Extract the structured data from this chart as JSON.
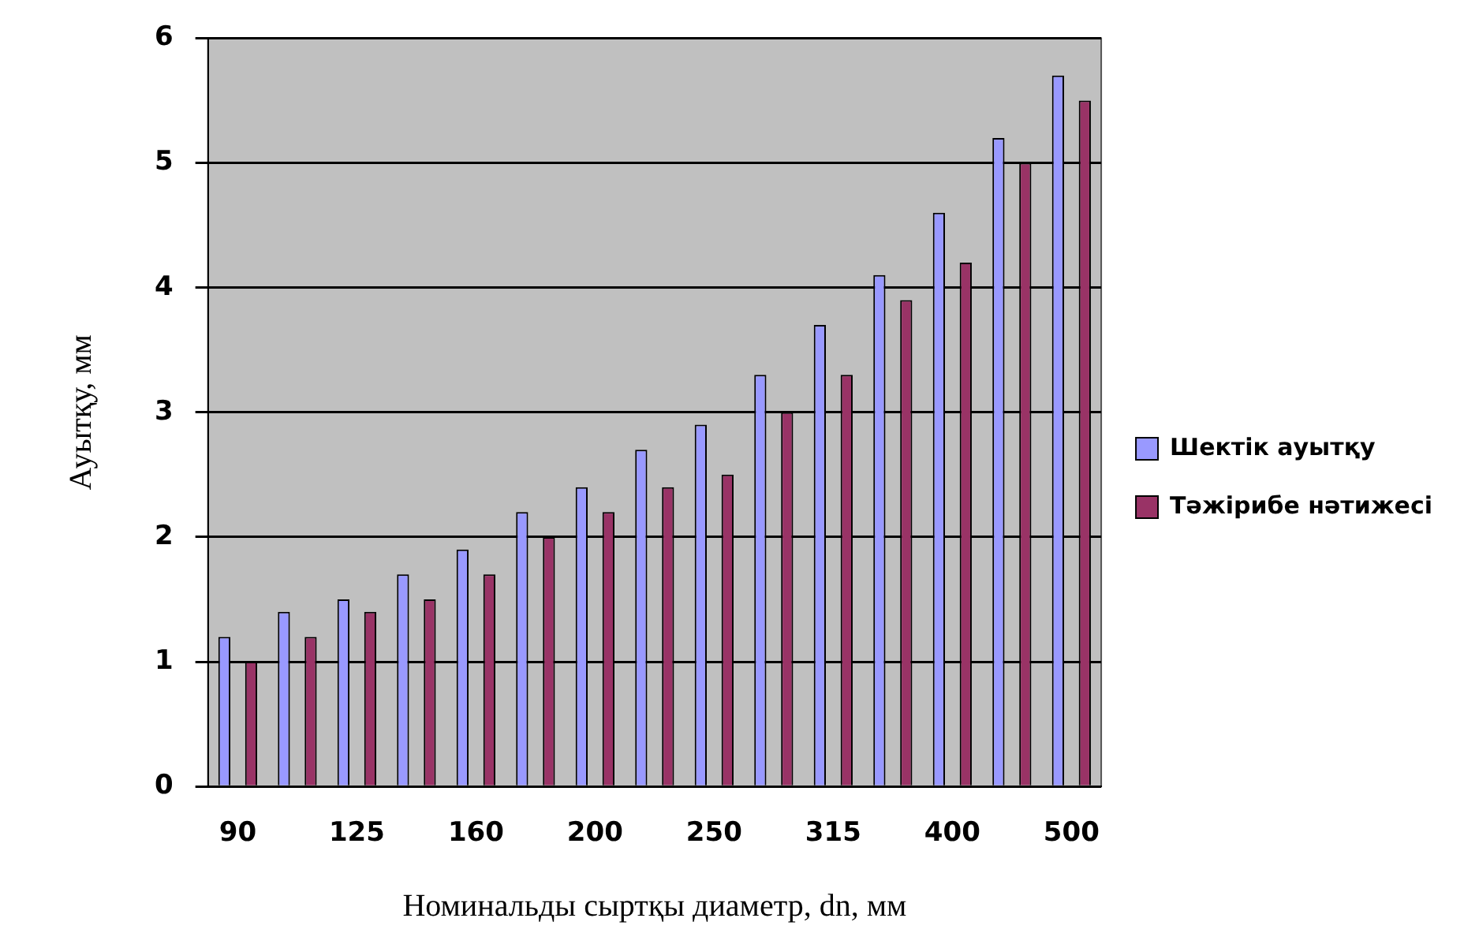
{
  "chart_data": {
    "type": "bar",
    "xlabel": "Номинальды сыртқы диаметр, dn, мм",
    "ylabel": "Ауытқу, мм",
    "categories": [
      "90",
      null,
      "125",
      null,
      "160",
      null,
      "200",
      null,
      "250",
      null,
      "315",
      null,
      "400",
      null,
      "500"
    ],
    "series": [
      {
        "name": "Шектік ауытқу",
        "color": "#9999ff",
        "values": [
          1.2,
          1.4,
          1.5,
          1.7,
          1.9,
          2.2,
          2.4,
          2.7,
          2.9,
          3.3,
          3.7,
          4.1,
          4.6,
          5.2,
          5.7
        ]
      },
      {
        "name": "Тәжірибе нәтижесі",
        "color": "#993366",
        "values": [
          1.0,
          1.2,
          1.4,
          1.5,
          1.7,
          2.0,
          2.2,
          2.4,
          2.5,
          3.0,
          3.3,
          3.9,
          4.2,
          5.0,
          5.5
        ]
      }
    ],
    "ylim": [
      0,
      6
    ],
    "yticks": [
      0,
      1,
      2,
      3,
      4,
      5,
      6
    ],
    "grid": "y",
    "legend": "right"
  }
}
